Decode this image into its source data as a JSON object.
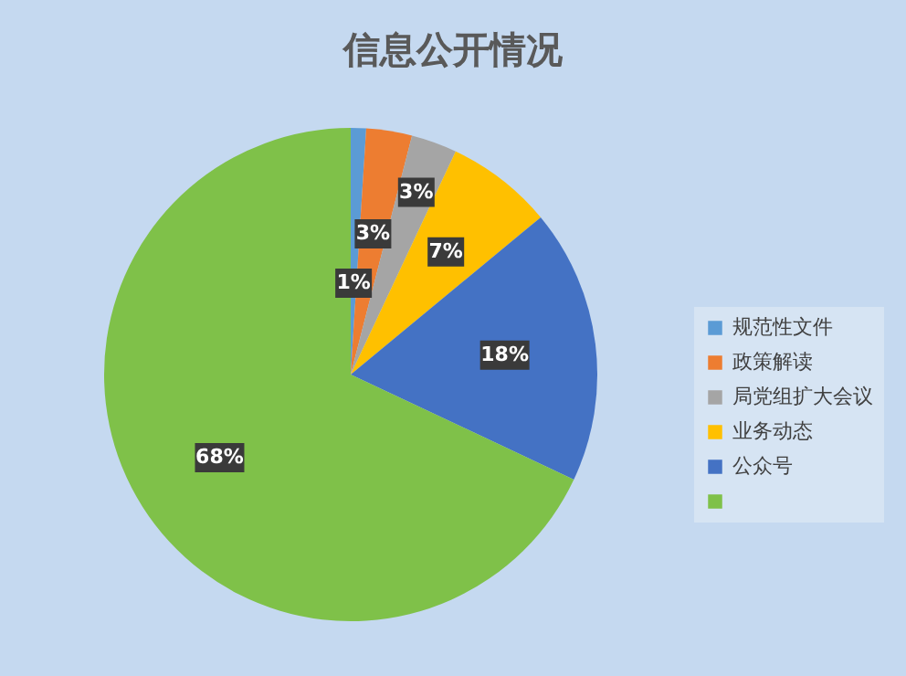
{
  "chart_data": {
    "type": "pie",
    "title": "信息公开情况",
    "categories": [
      "规范性文件",
      "政策解读",
      "局党组扩大会议",
      "业务动态",
      "公众号",
      null
    ],
    "values": [
      1,
      3,
      3,
      7,
      18,
      68
    ],
    "colors": [
      "#5b9bd5",
      "#ed7d31",
      "#a5a5a5",
      "#ffc000",
      "#4472c4",
      "#7fc149"
    ],
    "data_labels": true,
    "value_labels": [
      "1%",
      "3%",
      "3%",
      "7%",
      "18%",
      "68%"
    ],
    "legend": "right"
  }
}
